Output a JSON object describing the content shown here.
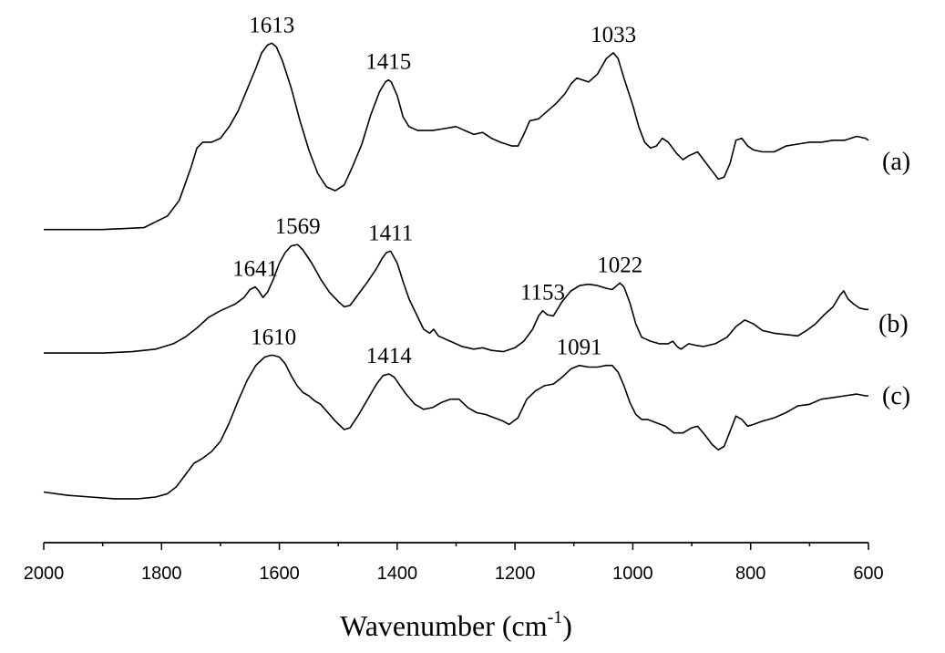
{
  "chart_data": {
    "type": "line",
    "xlabel": "Wavenumber (cm",
    "xlabel_sup": "-1",
    "xlabel_close": ")",
    "ylabel": "",
    "xlim": [
      2000,
      600
    ],
    "x_reversed": true,
    "y_axis_shown": false,
    "grid": false,
    "x_ticks": [
      2000,
      1800,
      1600,
      1400,
      1200,
      1000,
      800,
      600
    ],
    "series": [
      {
        "name": "(a)",
        "points": [
          [
            2000,
            0.02
          ],
          [
            1900,
            0.02
          ],
          [
            1830,
            0.03
          ],
          [
            1790,
            0.09
          ],
          [
            1770,
            0.17
          ],
          [
            1750,
            0.34
          ],
          [
            1740,
            0.44
          ],
          [
            1730,
            0.47
          ],
          [
            1715,
            0.47
          ],
          [
            1700,
            0.49
          ],
          [
            1685,
            0.55
          ],
          [
            1670,
            0.63
          ],
          [
            1655,
            0.74
          ],
          [
            1640,
            0.85
          ],
          [
            1630,
            0.93
          ],
          [
            1620,
            0.97
          ],
          [
            1613,
            0.98
          ],
          [
            1605,
            0.96
          ],
          [
            1595,
            0.89
          ],
          [
            1580,
            0.75
          ],
          [
            1565,
            0.58
          ],
          [
            1550,
            0.43
          ],
          [
            1535,
            0.31
          ],
          [
            1520,
            0.24
          ],
          [
            1505,
            0.22
          ],
          [
            1490,
            0.25
          ],
          [
            1475,
            0.35
          ],
          [
            1460,
            0.46
          ],
          [
            1445,
            0.61
          ],
          [
            1430,
            0.73
          ],
          [
            1420,
            0.78
          ],
          [
            1415,
            0.79
          ],
          [
            1410,
            0.78
          ],
          [
            1400,
            0.71
          ],
          [
            1390,
            0.6
          ],
          [
            1380,
            0.55
          ],
          [
            1365,
            0.53
          ],
          [
            1340,
            0.53
          ],
          [
            1320,
            0.54
          ],
          [
            1300,
            0.55
          ],
          [
            1285,
            0.53
          ],
          [
            1270,
            0.51
          ],
          [
            1255,
            0.52
          ],
          [
            1240,
            0.49
          ],
          [
            1225,
            0.47
          ],
          [
            1205,
            0.45
          ],
          [
            1195,
            0.45
          ],
          [
            1185,
            0.51
          ],
          [
            1175,
            0.58
          ],
          [
            1160,
            0.59
          ],
          [
            1145,
            0.63
          ],
          [
            1130,
            0.67
          ],
          [
            1115,
            0.72
          ],
          [
            1105,
            0.77
          ],
          [
            1095,
            0.8
          ],
          [
            1085,
            0.79
          ],
          [
            1075,
            0.78
          ],
          [
            1060,
            0.82
          ],
          [
            1045,
            0.9
          ],
          [
            1033,
            0.93
          ],
          [
            1025,
            0.9
          ],
          [
            1015,
            0.8
          ],
          [
            1000,
            0.66
          ],
          [
            990,
            0.55
          ],
          [
            980,
            0.47
          ],
          [
            970,
            0.44
          ],
          [
            960,
            0.45
          ],
          [
            950,
            0.49
          ],
          [
            940,
            0.47
          ],
          [
            925,
            0.41
          ],
          [
            915,
            0.38
          ],
          [
            905,
            0.4
          ],
          [
            890,
            0.42
          ],
          [
            880,
            0.38
          ],
          [
            865,
            0.32
          ],
          [
            855,
            0.28
          ],
          [
            845,
            0.29
          ],
          [
            835,
            0.36
          ],
          [
            825,
            0.48
          ],
          [
            815,
            0.49
          ],
          [
            805,
            0.45
          ],
          [
            795,
            0.43
          ],
          [
            780,
            0.42
          ],
          [
            760,
            0.42
          ],
          [
            740,
            0.45
          ],
          [
            720,
            0.46
          ],
          [
            700,
            0.47
          ],
          [
            680,
            0.47
          ],
          [
            660,
            0.48
          ],
          [
            640,
            0.48
          ],
          [
            620,
            0.5
          ],
          [
            605,
            0.49
          ],
          [
            600,
            0.48
          ]
        ]
      },
      {
        "name": "(b)",
        "points": [
          [
            2000,
            0.02
          ],
          [
            1900,
            0.02
          ],
          [
            1850,
            0.03
          ],
          [
            1810,
            0.05
          ],
          [
            1780,
            0.09
          ],
          [
            1760,
            0.14
          ],
          [
            1740,
            0.21
          ],
          [
            1720,
            0.29
          ],
          [
            1700,
            0.34
          ],
          [
            1690,
            0.36
          ],
          [
            1675,
            0.39
          ],
          [
            1660,
            0.44
          ],
          [
            1650,
            0.5
          ],
          [
            1641,
            0.52
          ],
          [
            1635,
            0.49
          ],
          [
            1628,
            0.44
          ],
          [
            1620,
            0.48
          ],
          [
            1610,
            0.58
          ],
          [
            1600,
            0.7
          ],
          [
            1590,
            0.78
          ],
          [
            1580,
            0.83
          ],
          [
            1569,
            0.84
          ],
          [
            1560,
            0.8
          ],
          [
            1545,
            0.7
          ],
          [
            1530,
            0.58
          ],
          [
            1515,
            0.48
          ],
          [
            1500,
            0.41
          ],
          [
            1490,
            0.37
          ],
          [
            1480,
            0.38
          ],
          [
            1465,
            0.47
          ],
          [
            1450,
            0.56
          ],
          [
            1435,
            0.66
          ],
          [
            1425,
            0.74
          ],
          [
            1418,
            0.78
          ],
          [
            1411,
            0.79
          ],
          [
            1400,
            0.7
          ],
          [
            1390,
            0.56
          ],
          [
            1380,
            0.43
          ],
          [
            1365,
            0.29
          ],
          [
            1355,
            0.2
          ],
          [
            1345,
            0.17
          ],
          [
            1338,
            0.2
          ],
          [
            1330,
            0.15
          ],
          [
            1310,
            0.11
          ],
          [
            1290,
            0.07
          ],
          [
            1270,
            0.05
          ],
          [
            1255,
            0.06
          ],
          [
            1240,
            0.04
          ],
          [
            1220,
            0.03
          ],
          [
            1200,
            0.06
          ],
          [
            1185,
            0.11
          ],
          [
            1170,
            0.2
          ],
          [
            1160,
            0.3
          ],
          [
            1153,
            0.34
          ],
          [
            1145,
            0.31
          ],
          [
            1135,
            0.3
          ],
          [
            1120,
            0.41
          ],
          [
            1105,
            0.49
          ],
          [
            1090,
            0.53
          ],
          [
            1075,
            0.54
          ],
          [
            1060,
            0.53
          ],
          [
            1045,
            0.51
          ],
          [
            1035,
            0.5
          ],
          [
            1022,
            0.55
          ],
          [
            1015,
            0.52
          ],
          [
            1005,
            0.4
          ],
          [
            995,
            0.24
          ],
          [
            985,
            0.14
          ],
          [
            970,
            0.11
          ],
          [
            955,
            0.09
          ],
          [
            940,
            0.09
          ],
          [
            932,
            0.11
          ],
          [
            925,
            0.07
          ],
          [
            918,
            0.05
          ],
          [
            905,
            0.09
          ],
          [
            895,
            0.08
          ],
          [
            880,
            0.07
          ],
          [
            860,
            0.09
          ],
          [
            840,
            0.14
          ],
          [
            825,
            0.22
          ],
          [
            810,
            0.27
          ],
          [
            795,
            0.24
          ],
          [
            780,
            0.19
          ],
          [
            760,
            0.17
          ],
          [
            740,
            0.16
          ],
          [
            720,
            0.15
          ],
          [
            705,
            0.19
          ],
          [
            690,
            0.24
          ],
          [
            675,
            0.31
          ],
          [
            660,
            0.37
          ],
          [
            648,
            0.46
          ],
          [
            642,
            0.49
          ],
          [
            635,
            0.43
          ],
          [
            625,
            0.39
          ],
          [
            615,
            0.36
          ],
          [
            605,
            0.35
          ],
          [
            600,
            0.35
          ]
        ]
      },
      {
        "name": "(c)",
        "points": [
          [
            2000,
            0.03
          ],
          [
            1960,
            0.01
          ],
          [
            1920,
            0.0
          ],
          [
            1880,
            -0.01
          ],
          [
            1840,
            -0.01
          ],
          [
            1810,
            0.0
          ],
          [
            1790,
            0.02
          ],
          [
            1775,
            0.06
          ],
          [
            1760,
            0.13
          ],
          [
            1745,
            0.2
          ],
          [
            1730,
            0.23
          ],
          [
            1715,
            0.27
          ],
          [
            1700,
            0.33
          ],
          [
            1685,
            0.44
          ],
          [
            1670,
            0.57
          ],
          [
            1655,
            0.69
          ],
          [
            1640,
            0.78
          ],
          [
            1625,
            0.83
          ],
          [
            1615,
            0.84
          ],
          [
            1610,
            0.84
          ],
          [
            1600,
            0.83
          ],
          [
            1590,
            0.79
          ],
          [
            1580,
            0.72
          ],
          [
            1570,
            0.66
          ],
          [
            1560,
            0.62
          ],
          [
            1550,
            0.6
          ],
          [
            1540,
            0.57
          ],
          [
            1530,
            0.55
          ],
          [
            1520,
            0.51
          ],
          [
            1505,
            0.45
          ],
          [
            1490,
            0.4
          ],
          [
            1480,
            0.41
          ],
          [
            1465,
            0.49
          ],
          [
            1450,
            0.58
          ],
          [
            1435,
            0.67
          ],
          [
            1424,
            0.72
          ],
          [
            1414,
            0.73
          ],
          [
            1405,
            0.71
          ],
          [
            1395,
            0.66
          ],
          [
            1385,
            0.61
          ],
          [
            1370,
            0.55
          ],
          [
            1355,
            0.52
          ],
          [
            1340,
            0.53
          ],
          [
            1325,
            0.56
          ],
          [
            1310,
            0.58
          ],
          [
            1295,
            0.58
          ],
          [
            1280,
            0.53
          ],
          [
            1265,
            0.5
          ],
          [
            1250,
            0.49
          ],
          [
            1235,
            0.47
          ],
          [
            1220,
            0.45
          ],
          [
            1210,
            0.43
          ],
          [
            1195,
            0.47
          ],
          [
            1180,
            0.58
          ],
          [
            1165,
            0.63
          ],
          [
            1150,
            0.66
          ],
          [
            1135,
            0.67
          ],
          [
            1120,
            0.71
          ],
          [
            1105,
            0.76
          ],
          [
            1091,
            0.78
          ],
          [
            1075,
            0.77
          ],
          [
            1060,
            0.77
          ],
          [
            1045,
            0.78
          ],
          [
            1035,
            0.78
          ],
          [
            1025,
            0.74
          ],
          [
            1015,
            0.66
          ],
          [
            1005,
            0.56
          ],
          [
            995,
            0.49
          ],
          [
            985,
            0.46
          ],
          [
            975,
            0.46
          ],
          [
            960,
            0.44
          ],
          [
            945,
            0.42
          ],
          [
            930,
            0.38
          ],
          [
            915,
            0.38
          ],
          [
            900,
            0.41
          ],
          [
            890,
            0.42
          ],
          [
            878,
            0.37
          ],
          [
            865,
            0.31
          ],
          [
            855,
            0.28
          ],
          [
            845,
            0.3
          ],
          [
            835,
            0.39
          ],
          [
            825,
            0.48
          ],
          [
            815,
            0.46
          ],
          [
            805,
            0.42
          ],
          [
            795,
            0.43
          ],
          [
            780,
            0.45
          ],
          [
            760,
            0.47
          ],
          [
            740,
            0.5
          ],
          [
            720,
            0.54
          ],
          [
            700,
            0.55
          ],
          [
            680,
            0.58
          ],
          [
            660,
            0.59
          ],
          [
            640,
            0.6
          ],
          [
            620,
            0.61
          ],
          [
            605,
            0.6
          ],
          [
            600,
            0.6
          ]
        ]
      }
    ],
    "annotations": [
      {
        "text": "1613",
        "series": 0,
        "x": 1613
      },
      {
        "text": "1415",
        "series": 0,
        "x": 1415
      },
      {
        "text": "1033",
        "series": 0,
        "x": 1033
      },
      {
        "text": "1641",
        "series": 1,
        "x": 1641
      },
      {
        "text": "1569",
        "series": 1,
        "x": 1569
      },
      {
        "text": "1411",
        "series": 1,
        "x": 1411
      },
      {
        "text": "1153",
        "series": 1,
        "x": 1153
      },
      {
        "text": "1022",
        "series": 1,
        "x": 1022
      },
      {
        "text": "1610",
        "series": 2,
        "x": 1610
      },
      {
        "text": "1414",
        "series": 2,
        "x": 1414
      },
      {
        "text": "1091",
        "series": 2,
        "x": 1091
      }
    ]
  }
}
